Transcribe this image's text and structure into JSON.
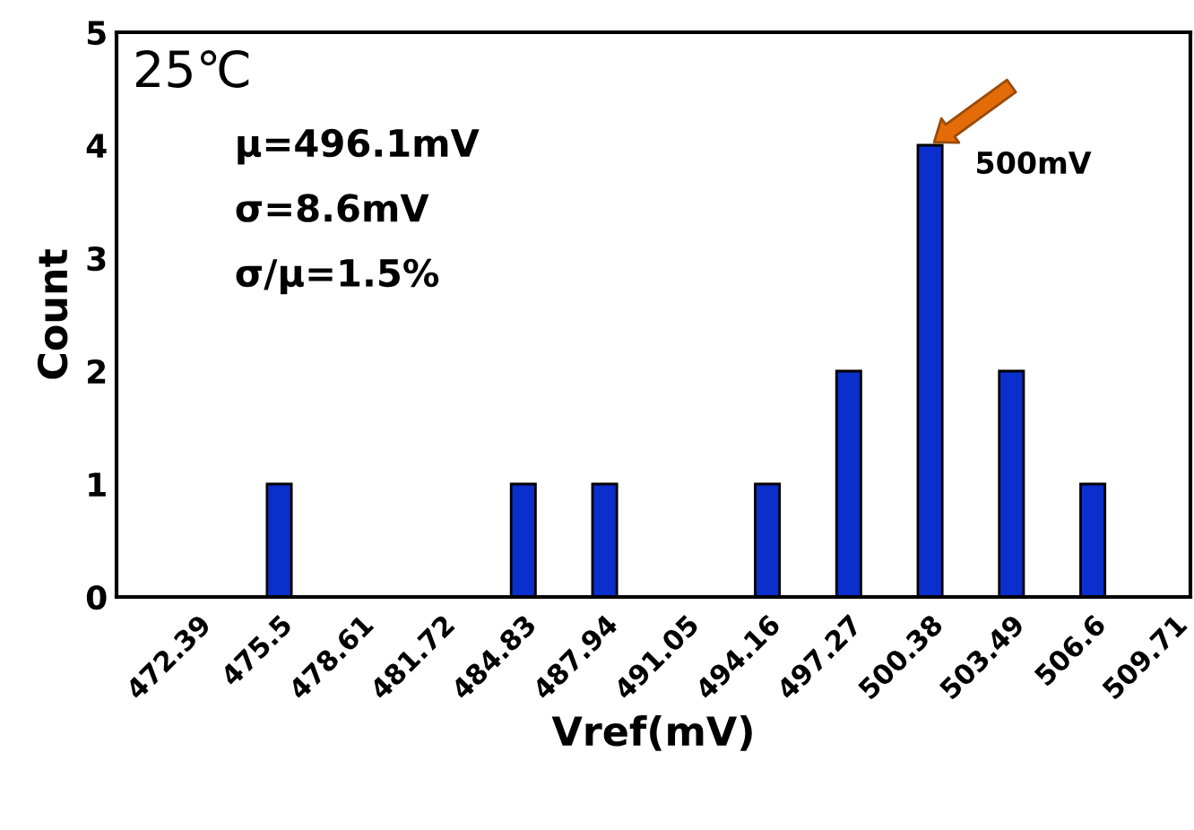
{
  "chart_data": {
    "type": "bar",
    "xlabel": "Vref(mV)",
    "ylabel": "Count",
    "categories": [
      "472.39",
      "475.5",
      "478.61",
      "481.72",
      "484.83",
      "487.94",
      "491.05",
      "494.16",
      "497.27",
      "500.38",
      "503.49",
      "506.6",
      "509.71"
    ],
    "values": [
      0,
      1,
      0,
      0,
      1,
      1,
      0,
      1,
      2,
      4,
      2,
      1,
      0
    ],
    "color": "#0a2fcc",
    "ylim": [
      0,
      5
    ],
    "yticks": [
      0,
      1,
      2,
      3,
      4,
      5
    ],
    "grid": false,
    "annotations": [
      "25℃",
      "μ=496.1mV",
      "σ=8.6mV",
      "σ/μ=1.5%",
      {
        "text": "500mV",
        "x": "500.38",
        "y": 4
      }
    ]
  }
}
